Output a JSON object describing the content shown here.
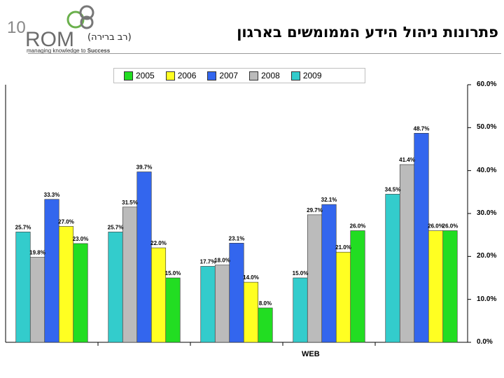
{
  "header": {
    "title": "פתרונות ניהול הידע הממומשים בארגון",
    "subtitle": "(רב ברירה)"
  },
  "logo": {
    "number": "10",
    "brand": "ROM",
    "tagline_prefix": "managing knowledge to ",
    "tagline_emphasis": "Success"
  },
  "chart_data": {
    "type": "bar",
    "title": "",
    "xlabel": "WEB",
    "ylabel": "",
    "ylim": [
      0,
      60
    ],
    "yticks": [
      "0.0%",
      "10.0%",
      "20.0%",
      "30.0%",
      "40.0%",
      "50.0%",
      "60.0%"
    ],
    "ytick_values": [
      0,
      10,
      20,
      30,
      40,
      50,
      60
    ],
    "legend": [
      {
        "name": "2005",
        "color": "#22dd22"
      },
      {
        "name": "2006",
        "color": "#ffff22"
      },
      {
        "name": "2007",
        "color": "#3366ee"
      },
      {
        "name": "2008",
        "color": "#bbbbbb"
      },
      {
        "name": "2009",
        "color": "#33cccc"
      }
    ],
    "groups": [
      {
        "bars": [
          {
            "series": "2009",
            "value": 25.7,
            "label": "25.7%"
          },
          {
            "series": "2008",
            "value": 19.8,
            "label": "19.8%"
          },
          {
            "series": "2007",
            "value": 33.3,
            "label": "33.3%"
          },
          {
            "series": "2006",
            "value": 27.0,
            "label": "27.0%"
          },
          {
            "series": "2005",
            "value": 23.0,
            "label": "23.0%"
          }
        ]
      },
      {
        "bars": [
          {
            "series": "2009",
            "value": 25.7,
            "label": "25.7%"
          },
          {
            "series": "2008",
            "value": 31.5,
            "label": "31.5%"
          },
          {
            "series": "2007",
            "value": 39.7,
            "label": "39.7%"
          },
          {
            "series": "2006",
            "value": 22.0,
            "label": "22.0%"
          },
          {
            "series": "2005",
            "value": 15.0,
            "label": "15.0%"
          }
        ]
      },
      {
        "bars": [
          {
            "series": "2009",
            "value": 17.7,
            "label": "17.7%"
          },
          {
            "series": "2008",
            "value": 18.0,
            "label": "18.0%"
          },
          {
            "series": "2007",
            "value": 23.1,
            "label": "23.1%"
          },
          {
            "series": "2006",
            "value": 14.0,
            "label": "14.0%"
          },
          {
            "series": "2005",
            "value": 8.0,
            "label": "8.0%"
          }
        ]
      },
      {
        "bars": [
          {
            "series": "2009",
            "value": 15.0,
            "label": "15.0%"
          },
          {
            "series": "2008",
            "value": 29.7,
            "label": "29.7%"
          },
          {
            "series": "2007",
            "value": 32.1,
            "label": "32.1%"
          },
          {
            "series": "2006",
            "value": 21.0,
            "label": "21.0%"
          },
          {
            "series": "2005",
            "value": 26.0,
            "label": "26.0%"
          }
        ]
      },
      {
        "bars": [
          {
            "series": "2009",
            "value": 34.5,
            "label": "34.5%"
          },
          {
            "series": "2008",
            "value": 41.4,
            "label": "41.4%"
          },
          {
            "series": "2007",
            "value": 48.7,
            "label": "48.7%"
          },
          {
            "series": "2006",
            "value": 26.0,
            "label": "26.0%"
          },
          {
            "series": "2005",
            "value": 26.0,
            "label": "26.0%"
          }
        ]
      }
    ]
  }
}
